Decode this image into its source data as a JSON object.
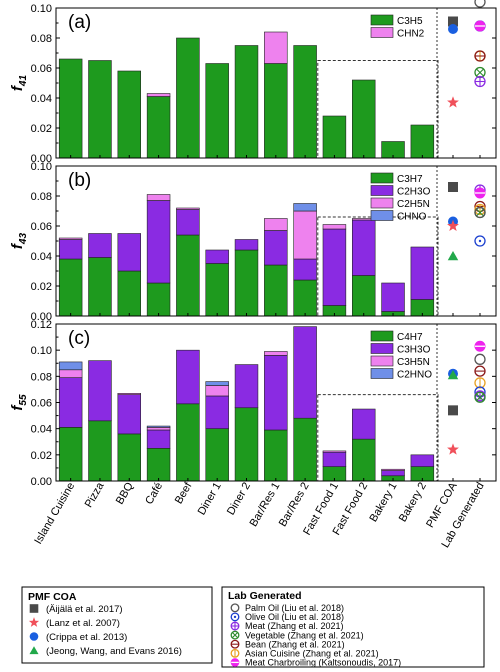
{
  "categories": [
    "Island Cuisine",
    "Pizza",
    "BBQ",
    "Café",
    "Beef",
    "Diner 1",
    "Diner 2",
    "Bar/Res 1",
    "Bar/Res 2",
    "Fast Food 1",
    "Fast Food 2",
    "Bakery 1",
    "Bakery 2"
  ],
  "extra_categories": [
    "PMF COA",
    "Lab Generated"
  ],
  "colors": {
    "C3H5": "#1e9a1e",
    "CHN2": "#ee82ee",
    "C3H7": "#1e9a1e",
    "C2H3O": "#8a2be2",
    "C2H5N": "#ee82ee",
    "CHNO": "#6f8fe8",
    "C4H7": "#1e9a1e",
    "C3H3O": "#8a2be2",
    "C3H5N": "#ee82ee",
    "C2HNO": "#6f8fe8",
    "square": "#4a4a4a",
    "star": "#f0505a",
    "circle": "#1a5fe0",
    "triangle": "#22a84a",
    "palm": "#555555",
    "olive": "#1a3fcf",
    "meat": "#8a2be2",
    "vegetable": "#2e8b2e",
    "bean": "#8b1a1a",
    "asian": "#e8a020",
    "charbroil": "#ee22ee"
  },
  "chart_data": [
    {
      "type": "bar",
      "label": "(a)",
      "ylabel": "f41",
      "ylim": [
        0,
        0.1
      ],
      "yticks": [
        "0.00",
        "0.02",
        "0.04",
        "0.06",
        "0.08",
        "0.10"
      ],
      "categories": [
        "Island Cuisine",
        "Pizza",
        "BBQ",
        "Café",
        "Beef",
        "Diner 1",
        "Diner 2",
        "Bar/Res 1",
        "Bar/Res 2",
        "Fast Food 1",
        "Fast Food 2",
        "Bakery 1",
        "Bakery 2"
      ],
      "series": [
        {
          "name": "C3H5",
          "values": [
            0.066,
            0.065,
            0.058,
            0.041,
            0.08,
            0.063,
            0.075,
            0.063,
            0.075,
            0.028,
            0.052,
            0.011,
            0.022
          ]
        },
        {
          "name": "CHN2",
          "values": [
            0.0,
            0.0,
            0.0,
            0.002,
            0.0,
            0.0,
            0.0,
            0.021,
            0.0,
            0.0,
            0.0,
            0.0,
            0.0
          ]
        }
      ],
      "pmf_coa": {
        "square": 0.091,
        "circle": 0.086,
        "star": 0.037
      },
      "lab_generated": {
        "palm": 0.104,
        "olive": 0.088,
        "charbroil": 0.088,
        "asian": 0.068,
        "bean": 0.068,
        "vegetable": 0.057,
        "meat": 0.051
      }
    },
    {
      "type": "bar",
      "label": "(b)",
      "ylabel": "f43",
      "ylim": [
        0,
        0.1
      ],
      "yticks": [
        "0.00",
        "0.02",
        "0.04",
        "0.06",
        "0.08",
        "0.10"
      ],
      "categories": [
        "Island Cuisine",
        "Pizza",
        "BBQ",
        "Café",
        "Beef",
        "Diner 1",
        "Diner 2",
        "Bar/Res 1",
        "Bar/Res 2",
        "Fast Food 1",
        "Fast Food 2",
        "Bakery 1",
        "Bakery 2"
      ],
      "series": [
        {
          "name": "C3H7",
          "values": [
            0.038,
            0.039,
            0.03,
            0.022,
            0.054,
            0.035,
            0.044,
            0.034,
            0.024,
            0.007,
            0.027,
            0.003,
            0.011
          ]
        },
        {
          "name": "C2H3O",
          "values": [
            0.013,
            0.016,
            0.025,
            0.055,
            0.017,
            0.009,
            0.007,
            0.023,
            0.014,
            0.051,
            0.037,
            0.019,
            0.035
          ]
        },
        {
          "name": "C2H5N",
          "values": [
            0.001,
            0.0,
            0.0,
            0.004,
            0.001,
            0.0,
            0.0,
            0.008,
            0.032,
            0.003,
            0.001,
            0.0,
            0.0
          ]
        },
        {
          "name": "CHNO",
          "values": [
            0.0,
            0.0,
            0.0,
            0.0,
            0.0,
            0.0,
            0.0,
            0.0,
            0.005,
            0.0,
            0.0,
            0.0,
            0.0
          ]
        }
      ],
      "pmf_coa": {
        "square": 0.086,
        "circle": 0.063,
        "star": 0.06,
        "triangle": 0.04
      },
      "lab_generated": {
        "meat": 0.084,
        "charbroil": 0.082,
        "bean": 0.073,
        "asian": 0.071,
        "vegetable": 0.069,
        "palm": 0.069,
        "olive": 0.05
      }
    },
    {
      "type": "bar",
      "label": "(c)",
      "ylabel": "f55",
      "ylim": [
        0,
        0.12
      ],
      "yticks": [
        "0.00",
        "0.02",
        "0.04",
        "0.06",
        "0.08",
        "0.10",
        "0.12"
      ],
      "categories": [
        "Island Cuisine",
        "Pizza",
        "BBQ",
        "Café",
        "Beef",
        "Diner 1",
        "Diner 2",
        "Bar/Res 1",
        "Bar/Res 2",
        "Fast Food 1",
        "Fast Food 2",
        "Bakery 1",
        "Bakery 2"
      ],
      "series": [
        {
          "name": "C4H7",
          "values": [
            0.041,
            0.046,
            0.036,
            0.025,
            0.059,
            0.04,
            0.056,
            0.039,
            0.048,
            0.011,
            0.032,
            0.004,
            0.011
          ]
        },
        {
          "name": "C3H3O",
          "values": [
            0.038,
            0.046,
            0.03,
            0.014,
            0.041,
            0.025,
            0.033,
            0.057,
            0.07,
            0.011,
            0.023,
            0.004,
            0.009
          ]
        },
        {
          "name": "C3H5N",
          "values": [
            0.006,
            0.0,
            0.001,
            0.002,
            0.0,
            0.008,
            0.0,
            0.003,
            0.0,
            0.001,
            0.0,
            0.001,
            0.0
          ]
        },
        {
          "name": "C2HNO",
          "values": [
            0.006,
            0.0,
            0.0,
            0.001,
            0.0,
            0.003,
            0.0,
            0.0,
            0.0,
            0.0,
            0.0,
            0.0,
            0.0
          ]
        }
      ],
      "pmf_coa": {
        "circle": 0.082,
        "triangle": 0.081,
        "square": 0.054,
        "star": 0.024
      },
      "lab_generated": {
        "charbroil": 0.103,
        "palm": 0.093,
        "bean": 0.084,
        "asian": 0.075,
        "olive": 0.068,
        "meat": 0.065,
        "vegetable": 0.064
      }
    }
  ],
  "legend_pmf": {
    "title": "PMF COA",
    "items": [
      {
        "key": "square",
        "label": "(Äijälä et al. 2017)"
      },
      {
        "key": "star",
        "label": "(Lanz et al. 2007)"
      },
      {
        "key": "circle",
        "label": "(Crippa et al. 2013)"
      },
      {
        "key": "triangle",
        "label": "(Jeong, Wang, and Evans 2016)"
      }
    ]
  },
  "legend_lab": {
    "title": "Lab Generated",
    "items": [
      {
        "key": "palm",
        "label": "Palm Oil (Liu et al. 2018)"
      },
      {
        "key": "olive",
        "label": "Olive Oil (Liu et al. 2018)"
      },
      {
        "key": "meat",
        "label": "Meat (Zhang et al. 2021)"
      },
      {
        "key": "vegetable",
        "label": "Vegetable (Zhang et al. 2021)"
      },
      {
        "key": "bean",
        "label": "Bean (Zhang et al. 2021)"
      },
      {
        "key": "asian",
        "label": "Asian Cuisine (Zhang et al. 2021)"
      },
      {
        "key": "charbroil",
        "label": "Meat Charbroiling (Kaltsonoudis, 2017)"
      }
    ]
  }
}
